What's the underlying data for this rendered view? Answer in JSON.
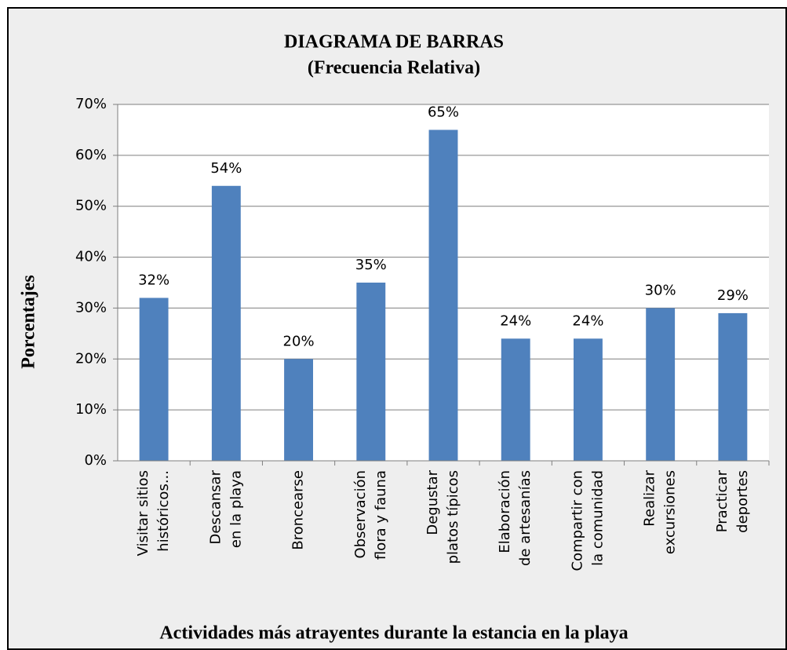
{
  "chart_data": {
    "type": "bar",
    "title": [
      "DIAGRAMA DE BARRAS",
      "(Frecuencia Relativa)"
    ],
    "y_label": "Porcentajes",
    "x_label": "Actividades más atrayentes durante la estancia en la playa",
    "categories": [
      [
        "Visitar sitios",
        "históricos..."
      ],
      [
        "Descansar",
        "en la playa"
      ],
      [
        "Broncearse"
      ],
      [
        "Observación",
        "flora y fauna"
      ],
      [
        "Degustar",
        "platos típicos"
      ],
      [
        "Elaboración",
        "de artesanías"
      ],
      [
        "Compartir con",
        "la comunidad"
      ],
      [
        "Realizar",
        "excursiones"
      ],
      [
        "Practicar",
        "deportes"
      ]
    ],
    "values": [
      32,
      54,
      20,
      35,
      65,
      24,
      24,
      30,
      29
    ],
    "value_labels": [
      "32%",
      "54%",
      "20%",
      "35%",
      "65%",
      "24%",
      "24%",
      "30%",
      "29%"
    ],
    "color": "#4f81bd",
    "ylim": [
      0,
      70
    ],
    "yticks": [
      {
        "value": 0,
        "label": "0%"
      },
      {
        "value": 10,
        "label": "10%"
      },
      {
        "value": 20,
        "label": "20%"
      },
      {
        "value": 30,
        "label": "30%"
      },
      {
        "value": 40,
        "label": "40%"
      },
      {
        "value": 50,
        "label": "50%"
      },
      {
        "value": 60,
        "label": "60%"
      },
      {
        "value": 70,
        "label": "70%"
      }
    ],
    "grid": true
  }
}
